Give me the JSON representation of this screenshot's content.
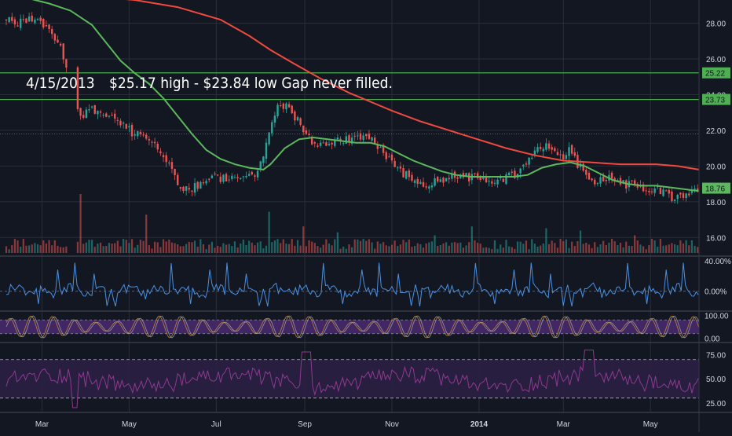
{
  "chart_data": {
    "type": "candlestick",
    "annotation": {
      "date": "4/15/2013",
      "text": "$25.17 high - $23.84 low Gap never filled."
    },
    "price_axis": {
      "ticks": [
        "28.00",
        "26.00",
        "24.00",
        "22.00",
        "20.00",
        "18.00",
        "16.00"
      ],
      "tick_values": [
        28,
        26,
        24,
        22,
        20,
        18,
        16
      ],
      "range": [
        15.0,
        29.3
      ]
    },
    "x_axis": {
      "labels": [
        "Mar",
        "May",
        "Jul",
        "Sep",
        "Nov",
        "2014",
        "Mar",
        "May"
      ],
      "label_days": [
        25,
        86,
        147,
        209,
        270,
        331,
        390,
        451
      ],
      "range_days": [
        0,
        485
      ]
    },
    "horizontal_lines": [
      {
        "value": 25.22,
        "label": "25.22",
        "color": "#4caf50"
      },
      {
        "value": 23.73,
        "label": "23.73",
        "color": "#4caf50"
      }
    ],
    "dotted_level": 21.8,
    "last_price": {
      "value": 18.76,
      "label": "18.76",
      "color": "#5cb85c"
    },
    "moving_averages": [
      {
        "color": "#f04a3e",
        "points": [
          [
            30,
            29.6
          ],
          [
            60,
            29.5
          ],
          [
            90,
            29.3
          ],
          [
            120,
            28.9
          ],
          [
            150,
            28.2
          ],
          [
            170,
            27.3
          ],
          [
            185,
            26.5
          ],
          [
            200,
            25.8
          ],
          [
            220,
            24.9
          ],
          [
            240,
            24.1
          ],
          [
            255,
            23.6
          ],
          [
            270,
            23.1
          ],
          [
            290,
            22.5
          ],
          [
            310,
            22.0
          ],
          [
            330,
            21.5
          ],
          [
            350,
            21.0
          ],
          [
            370,
            20.6
          ],
          [
            390,
            20.3
          ],
          [
            410,
            20.2
          ],
          [
            430,
            20.1
          ],
          [
            455,
            20.1
          ],
          [
            470,
            20.0
          ],
          [
            485,
            19.8
          ]
        ]
      },
      {
        "color": "#5cb85c",
        "points": [
          [
            15,
            29.4
          ],
          [
            30,
            29.1
          ],
          [
            45,
            28.7
          ],
          [
            60,
            27.9
          ],
          [
            70,
            26.9
          ],
          [
            80,
            25.9
          ],
          [
            90,
            25.2
          ],
          [
            100,
            24.6
          ],
          [
            110,
            23.8
          ],
          [
            120,
            22.8
          ],
          [
            130,
            21.8
          ],
          [
            140,
            20.9
          ],
          [
            150,
            20.4
          ],
          [
            160,
            20.1
          ],
          [
            170,
            19.9
          ],
          [
            180,
            19.8
          ],
          [
            185,
            20.1
          ],
          [
            195,
            21.0
          ],
          [
            205,
            21.5
          ],
          [
            215,
            21.6
          ],
          [
            225,
            21.5
          ],
          [
            235,
            21.4
          ],
          [
            245,
            21.3
          ],
          [
            255,
            21.3
          ],
          [
            265,
            21.1
          ],
          [
            275,
            20.7
          ],
          [
            285,
            20.3
          ],
          [
            295,
            20.0
          ],
          [
            305,
            19.7
          ],
          [
            315,
            19.5
          ],
          [
            325,
            19.4
          ],
          [
            335,
            19.4
          ],
          [
            345,
            19.4
          ],
          [
            355,
            19.4
          ],
          [
            365,
            19.5
          ],
          [
            375,
            19.9
          ],
          [
            385,
            20.1
          ],
          [
            395,
            20.2
          ],
          [
            405,
            20.0
          ],
          [
            415,
            19.6
          ],
          [
            425,
            19.2
          ],
          [
            435,
            19.0
          ],
          [
            445,
            18.9
          ],
          [
            455,
            18.9
          ],
          [
            465,
            18.8
          ],
          [
            475,
            18.7
          ],
          [
            485,
            18.6
          ]
        ]
      }
    ],
    "candle_anchors": [
      [
        0,
        28.3
      ],
      [
        8,
        28.0
      ],
      [
        18,
        28.2
      ],
      [
        28,
        27.9
      ],
      [
        35,
        27.0
      ],
      [
        40,
        26.2
      ],
      [
        44,
        25.3
      ],
      [
        47,
        25.3
      ],
      [
        49,
        23.8
      ],
      [
        52,
        22.7
      ],
      [
        58,
        23.3
      ],
      [
        64,
        23.1
      ],
      [
        70,
        22.8
      ],
      [
        78,
        22.6
      ],
      [
        88,
        21.9
      ],
      [
        96,
        21.7
      ],
      [
        102,
        21.3
      ],
      [
        110,
        20.7
      ],
      [
        118,
        19.3
      ],
      [
        124,
        18.7
      ],
      [
        128,
        18.6
      ],
      [
        136,
        19.0
      ],
      [
        146,
        19.4
      ],
      [
        156,
        19.2
      ],
      [
        164,
        19.5
      ],
      [
        172,
        19.3
      ],
      [
        180,
        20.5
      ],
      [
        186,
        22.5
      ],
      [
        190,
        23.5
      ],
      [
        196,
        23.4
      ],
      [
        202,
        22.8
      ],
      [
        208,
        22.0
      ],
      [
        214,
        21.3
      ],
      [
        220,
        21.2
      ],
      [
        228,
        21.3
      ],
      [
        236,
        21.5
      ],
      [
        244,
        21.6
      ],
      [
        252,
        21.8
      ],
      [
        258,
        21.2
      ],
      [
        264,
        20.7
      ],
      [
        270,
        20.2
      ],
      [
        278,
        19.6
      ],
      [
        286,
        19.2
      ],
      [
        294,
        19.0
      ],
      [
        302,
        19.1
      ],
      [
        310,
        19.3
      ],
      [
        320,
        19.4
      ],
      [
        330,
        19.3
      ],
      [
        340,
        19.1
      ],
      [
        346,
        19.2
      ],
      [
        354,
        19.5
      ],
      [
        360,
        19.7
      ],
      [
        366,
        20.4
      ],
      [
        372,
        21.0
      ],
      [
        378,
        21.1
      ],
      [
        384,
        20.9
      ],
      [
        390,
        20.5
      ],
      [
        394,
        20.9
      ],
      [
        400,
        20.1
      ],
      [
        406,
        19.5
      ],
      [
        412,
        19.1
      ],
      [
        418,
        19.2
      ],
      [
        424,
        19.3
      ],
      [
        430,
        19.0
      ],
      [
        440,
        18.9
      ],
      [
        448,
        18.6
      ],
      [
        456,
        18.7
      ],
      [
        462,
        18.4
      ],
      [
        468,
        18.2
      ],
      [
        474,
        18.3
      ],
      [
        480,
        18.6
      ],
      [
        485,
        18.76
      ]
    ],
    "volatility_axis": {
      "ticks": [
        "40.00%",
        "0.00%"
      ],
      "tick_values": [
        40,
        0
      ],
      "range": [
        -25,
        45
      ]
    },
    "oscillator_axis": {
      "ticks": [
        "100.00",
        "0.00"
      ],
      "tick_values": [
        100,
        0
      ],
      "range": [
        -15,
        115
      ],
      "band": [
        20,
        80
      ]
    },
    "lower_axis": {
      "ticks": [
        "75.00",
        "50.00",
        "25.00"
      ],
      "tick_values": [
        75,
        50,
        25
      ],
      "range": [
        15,
        87
      ],
      "levels": [
        70,
        30
      ]
    },
    "colors": {
      "background": "#131722",
      "grid": "#2a2e39",
      "up": "#26a69a",
      "down": "#ef5350",
      "volatility": "#4a90e2",
      "osc_band": "#4a2a6e",
      "osc_line": "#9aa0aa",
      "lower_band": "#2a1f44",
      "lower_line": "#8e3a8e",
      "axis_text": "#d1d4dc"
    }
  }
}
